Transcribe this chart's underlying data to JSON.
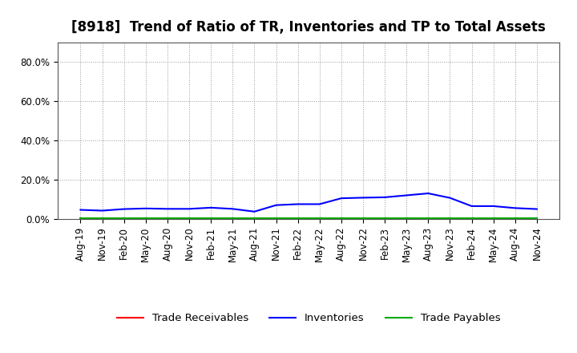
{
  "title": "[8918]  Trend of Ratio of TR, Inventories and TP to Total Assets",
  "x_labels": [
    "Aug-19",
    "Nov-19",
    "Feb-20",
    "May-20",
    "Aug-20",
    "Nov-20",
    "Feb-21",
    "May-21",
    "Aug-21",
    "Nov-21",
    "Feb-22",
    "May-22",
    "Aug-22",
    "Nov-22",
    "Feb-23",
    "May-23",
    "Aug-23",
    "Nov-23",
    "Feb-24",
    "May-24",
    "Aug-24",
    "Nov-24"
  ],
  "trade_receivables": [
    0.003,
    0.002,
    0.002,
    0.002,
    0.002,
    0.002,
    0.002,
    0.002,
    0.002,
    0.002,
    0.002,
    0.002,
    0.002,
    0.002,
    0.002,
    0.002,
    0.002,
    0.002,
    0.002,
    0.002,
    0.002,
    0.002
  ],
  "inventories": [
    0.046,
    0.042,
    0.05,
    0.053,
    0.051,
    0.051,
    0.057,
    0.051,
    0.037,
    0.07,
    0.075,
    0.075,
    0.105,
    0.108,
    0.11,
    0.12,
    0.13,
    0.107,
    0.065,
    0.065,
    0.055,
    0.05
  ],
  "trade_payables": [
    0.002,
    0.002,
    0.002,
    0.002,
    0.002,
    0.002,
    0.002,
    0.002,
    0.002,
    0.002,
    0.002,
    0.002,
    0.002,
    0.002,
    0.002,
    0.002,
    0.002,
    0.002,
    0.002,
    0.002,
    0.002,
    0.002
  ],
  "line_colors": {
    "trade_receivables": "#ff0000",
    "inventories": "#0000ff",
    "trade_payables": "#00aa00"
  },
  "ylim": [
    0.0,
    0.9
  ],
  "yticks": [
    0.0,
    0.2,
    0.4,
    0.6,
    0.8
  ],
  "ytick_labels": [
    "0.0%",
    "20.0%",
    "40.0%",
    "60.0%",
    "80.0%"
  ],
  "background_color": "#ffffff",
  "grid_color": "#999999",
  "legend_labels": [
    "Trade Receivables",
    "Inventories",
    "Trade Payables"
  ],
  "title_fontsize": 12,
  "tick_fontsize": 8.5,
  "legend_fontsize": 9.5
}
